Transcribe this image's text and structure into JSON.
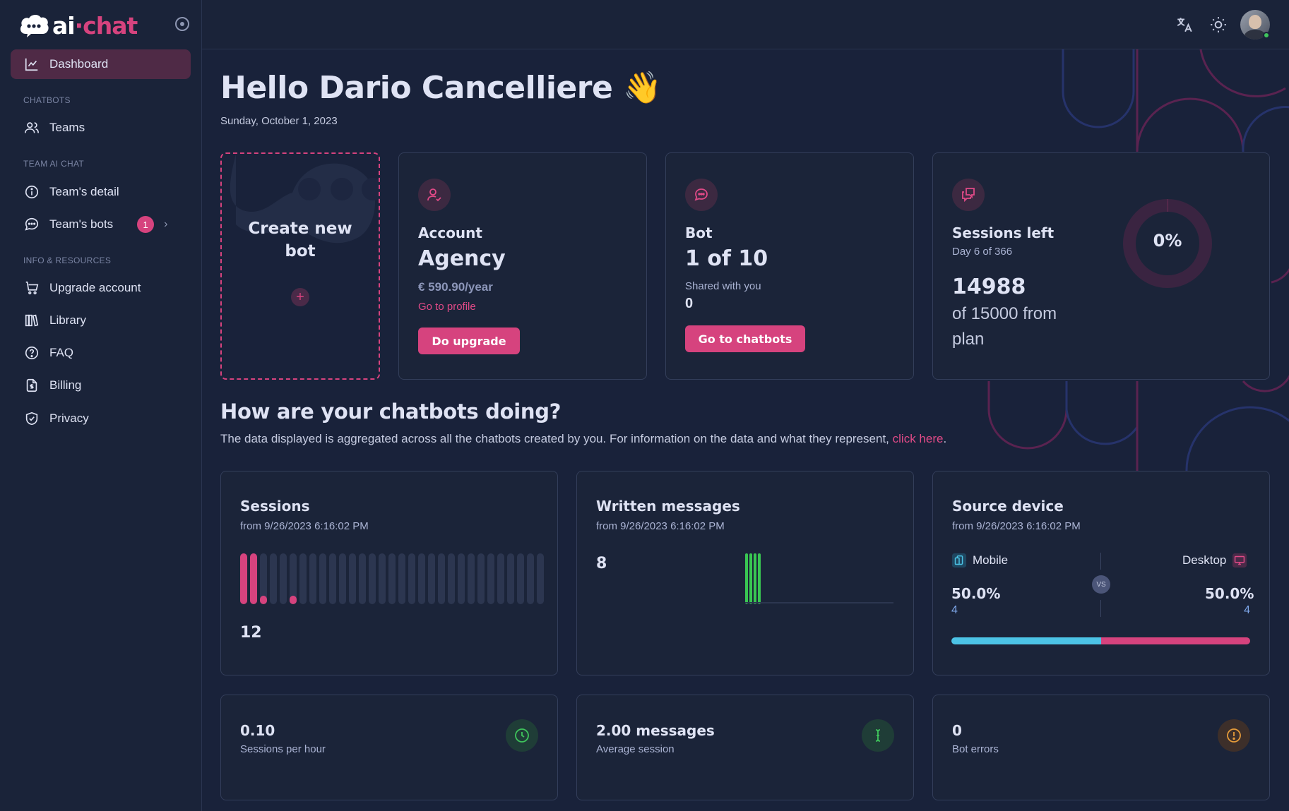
{
  "brand": {
    "ai": "ai",
    "dot": "·",
    "chat": "chat"
  },
  "sidebar": {
    "dashboard": "Dashboard",
    "section_chatbots": "CHATBOTS",
    "teams": "Teams",
    "section_team": "TEAM AI CHAT",
    "team_detail": "Team's detail",
    "team_bots": "Team's bots",
    "team_bots_badge": "1",
    "section_info": "INFO & RESOURCES",
    "upgrade": "Upgrade account",
    "library": "Library",
    "faq": "FAQ",
    "billing": "Billing",
    "privacy": "Privacy"
  },
  "header": {
    "greeting": "Hello Dario Cancelliere 👋",
    "date": "Sunday, October 1, 2023"
  },
  "create_bot": {
    "label": "Create new bot",
    "plus": "+"
  },
  "account": {
    "title": "Account",
    "plan": "Agency",
    "price": "€ 590.90/year",
    "link": "Go to profile",
    "button": "Do upgrade"
  },
  "bot": {
    "title": "Bot",
    "count": "1 of 10",
    "shared_label": "Shared with you",
    "shared_value": "0",
    "button": "Go to chatbots"
  },
  "sessions_left": {
    "title": "Sessions left",
    "day": "Day 6 of 366",
    "value": "14988",
    "of_text": "of 15000 from plan",
    "percent_label": "0%",
    "percent": 0.1
  },
  "section": {
    "title": "How are your chatbots doing?",
    "desc": "The data displayed is aggregated across all the chatbots created by you. For information on the data and what they represent, ",
    "link": "click here",
    "end": "."
  },
  "sessions": {
    "title": "Sessions",
    "from": "from 9/26/2023 6:16:02 PM",
    "total": "12",
    "bar_levels": [
      1,
      1,
      0.15,
      0,
      0,
      0.15,
      0,
      0,
      0,
      0,
      0,
      0,
      0,
      0,
      0,
      0,
      0,
      0,
      0,
      0,
      0,
      0,
      0,
      0,
      0,
      0,
      0,
      0,
      0,
      0,
      0
    ]
  },
  "written": {
    "title": "Written messages",
    "from": "from 9/26/2023 6:16:02 PM",
    "total": "8",
    "bar_levels": [
      1,
      1,
      1,
      1
    ]
  },
  "device": {
    "title": "Source device",
    "from": "from 9/26/2023 6:16:02 PM",
    "mobile_label": "Mobile",
    "desktop_label": "Desktop",
    "vs": "VS",
    "mobile_pct": "50.0%",
    "mobile_count": "4",
    "desktop_pct": "50.0%",
    "desktop_count": "4",
    "mobile_share": 0.5,
    "colors": {
      "mobile": "#4cc3e6",
      "desktop": "#d6437e"
    }
  },
  "metrics": {
    "sessions_per_hour": {
      "value": "0.10",
      "label": "Sessions per hour"
    },
    "avg_session": {
      "value": "2.00 messages",
      "label": "Average session"
    },
    "bot_errors": {
      "value": "0",
      "label": "Bot errors"
    }
  },
  "colors": {
    "accent": "#d6437e",
    "background": "#19223a",
    "card": "#1b2439"
  }
}
